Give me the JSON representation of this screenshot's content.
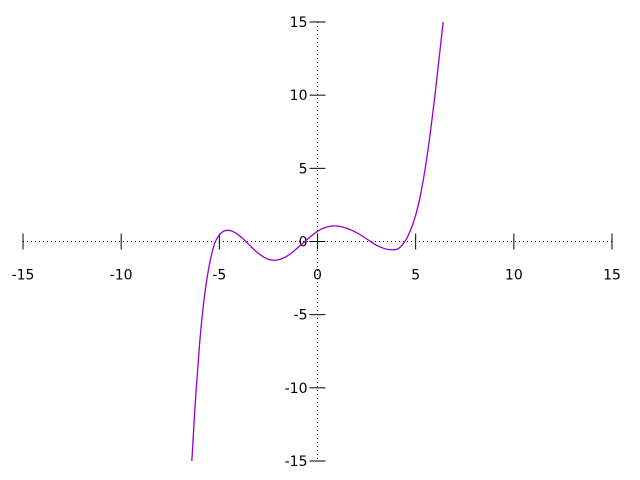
{
  "chart_data": {
    "type": "line",
    "title": "",
    "xlabel": "",
    "ylabel": "",
    "xlim": [
      -15,
      15
    ],
    "ylim": [
      -15,
      15
    ],
    "x_ticks": [
      -15,
      -10,
      -5,
      0,
      5,
      10,
      15
    ],
    "x_tick_labels": [
      "-15",
      "-10",
      "-5",
      "0",
      "5",
      "10",
      "15"
    ],
    "y_ticks": [
      -15,
      -10,
      -5,
      0,
      5,
      10,
      15
    ],
    "y_tick_labels": [
      "-15",
      "-10",
      "-5",
      "0",
      "5",
      "10",
      "15"
    ],
    "grid": false,
    "axis_style": "dotted axes through origin",
    "series": [
      {
        "color": "#9400d3",
        "x": [
          -6.4,
          -6.2,
          -6.0,
          -5.8,
          -5.6,
          -5.4,
          -5.2,
          -5.0,
          -4.8,
          -4.6,
          -4.4,
          -4.2,
          -4.0,
          -3.8,
          -3.5,
          -3.0,
          -2.5,
          -2.0,
          -1.5,
          -1.0,
          -0.5,
          0.0,
          0.5,
          1.0,
          1.5,
          2.0,
          2.5,
          3.0,
          3.5,
          4.0,
          4.2,
          4.4,
          4.6,
          4.8,
          5.0,
          5.2,
          5.4,
          5.6,
          5.8,
          6.0,
          6.2,
          6.4
        ],
        "y": [
          -15.0,
          -10.5,
          -6.9,
          -4.2,
          -2.3,
          -0.9,
          0.0,
          0.45,
          0.69,
          0.77,
          0.73,
          0.61,
          0.42,
          0.2,
          -0.2,
          -0.82,
          -1.22,
          -1.25,
          -0.95,
          -0.42,
          0.17,
          0.7,
          1.0,
          1.06,
          0.9,
          0.6,
          0.18,
          -0.25,
          -0.52,
          -0.55,
          -0.4,
          -0.1,
          0.35,
          1.0,
          1.8,
          2.9,
          4.3,
          6.0,
          8.0,
          10.2,
          12.6,
          15.0
        ]
      }
    ]
  }
}
